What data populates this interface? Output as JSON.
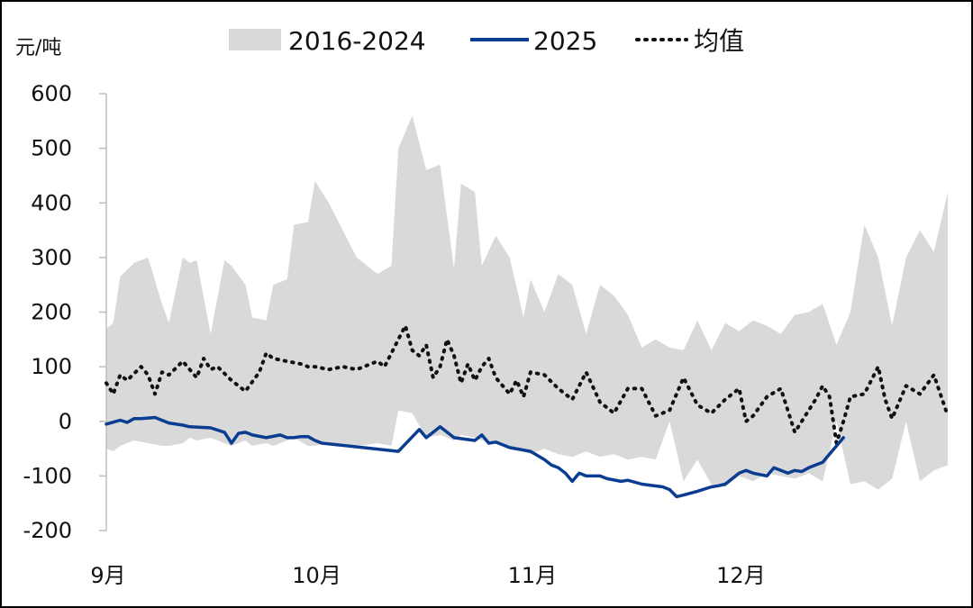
{
  "chart_data": {
    "type": "area",
    "ylabel": "元/吨",
    "ylim": [
      -200,
      600
    ],
    "y_ticks": [
      600,
      500,
      400,
      300,
      200,
      100,
      0,
      -100,
      -200
    ],
    "x_start": "09-01",
    "x_end": "12-31",
    "x_ticks": [
      {
        "date": "09-01",
        "label": "9月"
      },
      {
        "date": "10-01",
        "label": "10月"
      },
      {
        "date": "11-01",
        "label": "11月"
      },
      {
        "date": "12-01",
        "label": "12月"
      }
    ],
    "grid": false,
    "legend_position": "top",
    "series": [
      {
        "name": "2016-2024",
        "kind": "band",
        "color": "#d9d9d9",
        "x": [
          "09-01",
          "09-02",
          "09-03",
          "09-05",
          "09-07",
          "09-09",
          "09-10",
          "09-12",
          "09-13",
          "09-14",
          "09-16",
          "09-18",
          "09-19",
          "09-21",
          "09-22",
          "09-24",
          "09-25",
          "09-27",
          "09-28",
          "09-30",
          "10-01",
          "10-03",
          "10-05",
          "10-07",
          "10-10",
          "10-12",
          "10-13",
          "10-15",
          "10-17",
          "10-19",
          "10-21",
          "10-22",
          "10-24",
          "10-25",
          "10-27",
          "10-29",
          "10-31",
          "11-01",
          "11-03",
          "11-05",
          "11-07",
          "11-09",
          "11-11",
          "11-13",
          "11-15",
          "11-17",
          "11-19",
          "11-21",
          "11-23",
          "11-25",
          "11-27",
          "11-29",
          "12-01",
          "12-03",
          "12-05",
          "12-07",
          "12-09",
          "12-11",
          "12-13",
          "12-15",
          "12-17",
          "12-19",
          "12-21",
          "12-23",
          "12-25",
          "12-27",
          "12-29",
          "12-31"
        ],
        "upper": [
          170,
          180,
          265,
          290,
          300,
          215,
          180,
          300,
          290,
          295,
          160,
          295,
          285,
          250,
          190,
          185,
          250,
          260,
          360,
          365,
          440,
          400,
          350,
          300,
          270,
          285,
          500,
          560,
          460,
          470,
          280,
          435,
          420,
          285,
          340,
          300,
          190,
          260,
          200,
          270,
          250,
          160,
          250,
          230,
          195,
          135,
          150,
          135,
          130,
          185,
          130,
          180,
          165,
          185,
          175,
          160,
          195,
          200,
          215,
          140,
          200,
          360,
          300,
          175,
          300,
          350,
          310,
          420
        ],
        "lower": [
          -50,
          -55,
          -45,
          -35,
          -40,
          -45,
          -45,
          -40,
          -30,
          -35,
          -30,
          -40,
          -45,
          -35,
          -45,
          -40,
          -45,
          -35,
          -30,
          -45,
          -45,
          -40,
          -45,
          -45,
          -40,
          -45,
          20,
          15,
          -30,
          -25,
          -35,
          -25,
          -30,
          -35,
          -40,
          -45,
          -55,
          -60,
          -50,
          -60,
          -65,
          -55,
          -65,
          -60,
          -70,
          -65,
          -70,
          0,
          -110,
          -70,
          -115,
          -120,
          -100,
          -110,
          -95,
          -100,
          -105,
          -95,
          -110,
          0,
          -115,
          -110,
          -125,
          -105,
          0,
          -110,
          -90,
          -80
        ]
      },
      {
        "name": "2025",
        "kind": "line",
        "color": "#0a3d91",
        "x": [
          "09-01",
          "09-03",
          "09-04",
          "09-05",
          "09-06",
          "09-08",
          "09-10",
          "09-12",
          "09-13",
          "09-16",
          "09-18",
          "09-19",
          "09-20",
          "09-21",
          "09-22",
          "09-24",
          "09-26",
          "09-27",
          "09-28",
          "09-29",
          "09-30",
          "10-01",
          "10-02",
          "10-13",
          "10-16",
          "10-17",
          "10-18",
          "10-19",
          "10-21",
          "10-24",
          "10-25",
          "10-26",
          "10-27",
          "10-29",
          "11-01",
          "11-03",
          "11-04",
          "11-05",
          "11-06",
          "11-07",
          "11-08",
          "11-09",
          "11-11",
          "11-12",
          "11-14",
          "11-15",
          "11-17",
          "11-20",
          "11-21",
          "11-22",
          "11-23",
          "11-25",
          "11-27",
          "11-28",
          "11-29",
          "12-01",
          "12-02",
          "12-03",
          "12-05",
          "12-06",
          "12-08",
          "12-09",
          "12-10",
          "12-11",
          "12-12",
          "12-13",
          "12-15",
          "12-16"
        ],
        "values": [
          -5,
          2,
          -2,
          5,
          5,
          7,
          -3,
          -7,
          -10,
          -12,
          -20,
          -40,
          -22,
          -20,
          -25,
          -30,
          -25,
          -30,
          -30,
          -28,
          -28,
          -35,
          -40,
          -55,
          -15,
          -30,
          -20,
          -10,
          -30,
          -35,
          -25,
          -40,
          -38,
          -48,
          -55,
          -70,
          -80,
          -85,
          -95,
          -110,
          -95,
          -100,
          -100,
          -105,
          -110,
          -108,
          -115,
          -120,
          -125,
          -138,
          -135,
          -128,
          -120,
          -118,
          -115,
          -95,
          -90,
          -95,
          -100,
          -85,
          -95,
          -90,
          -92,
          -85,
          -80,
          -75,
          -45,
          -30
        ]
      },
      {
        "name": "均值",
        "kind": "dotted",
        "color": "#111111",
        "x": [
          "09-01",
          "09-02",
          "09-03",
          "09-04",
          "09-06",
          "09-07",
          "09-08",
          "09-09",
          "09-10",
          "09-12",
          "09-13",
          "09-14",
          "09-15",
          "09-16",
          "09-17",
          "09-19",
          "09-21",
          "09-23",
          "09-24",
          "09-25",
          "09-27",
          "09-29",
          "09-30",
          "10-01",
          "10-03",
          "10-05",
          "10-07",
          "10-10",
          "10-11",
          "10-13",
          "10-14",
          "10-15",
          "10-16",
          "10-17",
          "10-18",
          "10-19",
          "10-20",
          "10-21",
          "10-22",
          "10-23",
          "10-24",
          "10-25",
          "10-26",
          "10-27",
          "10-29",
          "10-30",
          "10-31",
          "11-01",
          "11-03",
          "11-05",
          "11-07",
          "11-09",
          "11-11",
          "11-13",
          "11-15",
          "11-17",
          "11-19",
          "11-21",
          "11-23",
          "11-25",
          "11-27",
          "11-29",
          "12-01",
          "12-02",
          "12-03",
          "12-05",
          "12-07",
          "12-09",
          "12-10",
          "12-11",
          "12-12",
          "12-13",
          "12-14",
          "12-15",
          "12-16",
          "12-17",
          "12-19",
          "12-21",
          "12-22",
          "12-23",
          "12-25",
          "12-27",
          "12-29",
          "12-31"
        ],
        "values": [
          70,
          50,
          85,
          75,
          100,
          85,
          50,
          90,
          85,
          110,
          95,
          80,
          115,
          95,
          100,
          75,
          55,
          90,
          125,
          115,
          110,
          105,
          100,
          100,
          95,
          100,
          95,
          110,
          100,
          150,
          175,
          130,
          120,
          140,
          80,
          100,
          150,
          120,
          70,
          105,
          75,
          100,
          115,
          80,
          50,
          75,
          45,
          90,
          85,
          60,
          40,
          90,
          35,
          15,
          60,
          60,
          10,
          20,
          80,
          30,
          15,
          40,
          60,
          0,
          10,
          45,
          60,
          -20,
          0,
          20,
          40,
          65,
          45,
          -40,
          0,
          45,
          50,
          100,
          40,
          5,
          65,
          50,
          85,
          10
        ]
      }
    ]
  }
}
